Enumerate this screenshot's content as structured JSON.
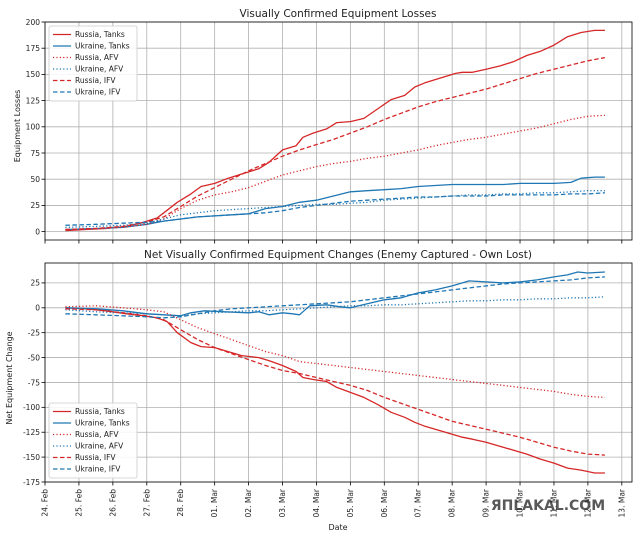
{
  "watermark": "ЯПLAKAL.COM",
  "chart_data": [
    {
      "type": "line",
      "title": "Visually Confirmed Equipment Losses",
      "xlabel": "",
      "ylabel": "Equipment Losses",
      "ylim": [
        -8,
        200
      ],
      "yticks": [
        0,
        25,
        50,
        75,
        100,
        125,
        150,
        175,
        200
      ],
      "xlim": [
        0,
        17.3
      ],
      "xticks": [
        0,
        1,
        2,
        3,
        4,
        5,
        6,
        7,
        8,
        9,
        10,
        11,
        12,
        13,
        14,
        15,
        16,
        17
      ],
      "xticklabels": [],
      "grid": true,
      "legend": "top-left",
      "series": [
        {
          "name": "Russia, Tanks",
          "color": "#d62728",
          "dash": "solid",
          "x": [
            0.6,
            1.2,
            1.8,
            2.4,
            2.9,
            3.3,
            3.5,
            3.9,
            4.3,
            4.6,
            5.0,
            5.4,
            5.8,
            6.3,
            6.6,
            7.0,
            7.4,
            7.6,
            7.9,
            8.3,
            8.6,
            9.0,
            9.4,
            9.8,
            10.2,
            10.6,
            10.9,
            11.2,
            11.5,
            11.8,
            12.1,
            12.3,
            12.6,
            13.0,
            13.4,
            13.8,
            14.2,
            14.6,
            15.0,
            15.4,
            15.8,
            16.2,
            16.5
          ],
          "y": [
            1,
            2,
            3,
            5,
            9,
            13,
            18,
            28,
            36,
            43,
            46,
            51,
            55,
            60,
            66,
            78,
            82,
            90,
            94,
            98,
            104,
            105,
            108,
            117,
            126,
            130,
            138,
            142,
            145,
            148,
            151,
            152,
            152,
            155,
            158,
            162,
            168,
            172,
            178,
            186,
            190,
            192,
            192
          ]
        },
        {
          "name": "Ukraine, Tanks",
          "color": "#1f77b4",
          "dash": "solid",
          "x": [
            0.6,
            1.5,
            2.3,
            3.0,
            3.5,
            4.0,
            4.5,
            5.0,
            5.5,
            6.0,
            6.5,
            7.0,
            7.5,
            8.0,
            8.5,
            9.0,
            9.5,
            10.0,
            10.5,
            11.0,
            11.5,
            12.0,
            12.5,
            13.0,
            13.5,
            14.0,
            14.5,
            15.0,
            15.5,
            15.8,
            16.2,
            16.5
          ],
          "y": [
            2,
            3,
            4,
            7,
            10,
            12,
            14,
            15,
            16,
            17,
            22,
            24,
            28,
            30,
            34,
            38,
            39,
            40,
            41,
            43,
            44,
            45,
            45,
            45,
            45,
            46,
            46,
            46,
            47,
            51,
            52,
            52
          ]
        },
        {
          "name": "Russia, AFV",
          "color": "#d62728",
          "dash": "dot",
          "x": [
            0.6,
            1.5,
            2.3,
            3.0,
            3.5,
            4.0,
            4.5,
            5.0,
            5.5,
            6.0,
            6.5,
            7.0,
            7.5,
            8.0,
            8.5,
            9.0,
            9.5,
            10.0,
            10.5,
            11.0,
            11.5,
            12.0,
            12.5,
            13.0,
            13.5,
            14.0,
            14.5,
            15.0,
            15.5,
            16.0,
            16.5
          ],
          "y": [
            2,
            3,
            4,
            7,
            12,
            22,
            30,
            35,
            38,
            42,
            48,
            54,
            58,
            62,
            65,
            67,
            70,
            72,
            75,
            78,
            82,
            85,
            88,
            90,
            93,
            96,
            99,
            103,
            107,
            110,
            111
          ]
        },
        {
          "name": "Ukraine, AFV",
          "color": "#1f77b4",
          "dash": "dot",
          "x": [
            0.6,
            1.5,
            2.3,
            3.0,
            3.5,
            4.0,
            4.5,
            5.0,
            5.5,
            6.0,
            6.5,
            7.0,
            7.5,
            8.0,
            8.5,
            9.0,
            9.5,
            10.0,
            10.5,
            11.0,
            11.5,
            12.0,
            12.5,
            13.0,
            13.5,
            14.0,
            14.5,
            15.0,
            15.5,
            16.0,
            16.5
          ],
          "y": [
            4,
            5,
            6,
            8,
            12,
            16,
            18,
            20,
            21,
            22,
            23,
            24,
            25,
            26,
            26,
            27,
            28,
            30,
            31,
            32,
            33,
            34,
            35,
            35,
            36,
            36,
            37,
            37,
            38,
            39,
            39
          ]
        },
        {
          "name": "Russia, IFV",
          "color": "#d62728",
          "dash": "dash",
          "x": [
            0.6,
            1.5,
            2.3,
            3.0,
            3.5,
            4.0,
            4.5,
            5.0,
            5.5,
            6.0,
            6.5,
            7.0,
            7.5,
            8.0,
            8.5,
            9.0,
            9.5,
            10.0,
            10.5,
            11.0,
            11.5,
            12.0,
            12.5,
            13.0,
            13.5,
            14.0,
            14.5,
            15.0,
            15.5,
            16.0,
            16.5
          ],
          "y": [
            2,
            3,
            5,
            9,
            14,
            24,
            34,
            42,
            50,
            58,
            65,
            72,
            78,
            83,
            88,
            94,
            100,
            107,
            113,
            119,
            124,
            128,
            132,
            136,
            141,
            146,
            151,
            155,
            159,
            163,
            166
          ]
        },
        {
          "name": "Ukraine, IFV",
          "color": "#1f77b4",
          "dash": "dash",
          "x": [
            0.6,
            1.5,
            2.3,
            3.0,
            3.5,
            4.0,
            4.5,
            5.0,
            5.5,
            6.0,
            6.5,
            7.0,
            7.5,
            8.0,
            8.5,
            9.0,
            9.5,
            10.0,
            10.5,
            11.0,
            11.5,
            12.0,
            12.5,
            13.0,
            13.5,
            14.0,
            14.5,
            15.0,
            15.5,
            16.0,
            16.5
          ],
          "y": [
            6,
            7,
            8,
            9,
            10,
            12,
            14,
            15,
            16,
            17,
            18,
            20,
            23,
            25,
            27,
            29,
            30,
            31,
            32,
            33,
            33,
            34,
            34,
            34,
            35,
            35,
            35,
            35,
            36,
            36,
            37
          ]
        }
      ]
    },
    {
      "type": "line",
      "title": "Net Visually Confirmed Equipment Changes (Enemy Captured - Own Lost)",
      "xlabel": "Date",
      "ylabel": "Net Equipment Change",
      "ylim": [
        -175,
        45
      ],
      "yticks": [
        -175,
        -150,
        -125,
        -100,
        -75,
        -50,
        -25,
        0,
        25
      ],
      "xlim": [
        0,
        17.3
      ],
      "xticks": [
        0,
        1,
        2,
        3,
        4,
        5,
        6,
        7,
        8,
        9,
        10,
        11,
        12,
        13,
        14,
        15,
        16,
        17
      ],
      "xticklabels": [
        "24. Feb",
        "25. Feb",
        "26. Feb",
        "27. Feb",
        "28. Feb",
        "01. Mar",
        "02. Mar",
        "03. Mar",
        "04. Mar",
        "05. Mar",
        "06. Mar",
        "07. Mar",
        "08. Mar",
        "09. Mar",
        "10. Mar",
        "11. Mar",
        "12. Mar",
        "13. Mar"
      ],
      "grid": true,
      "legend": "bottom-left",
      "series": [
        {
          "name": "Russia, Tanks",
          "color": "#d62728",
          "dash": "solid",
          "x": [
            0.6,
            1.2,
            1.8,
            2.4,
            2.9,
            3.3,
            3.6,
            3.9,
            4.3,
            4.6,
            5.0,
            5.4,
            5.8,
            6.3,
            6.6,
            7.0,
            7.4,
            7.6,
            7.9,
            8.3,
            8.6,
            9.0,
            9.4,
            9.8,
            10.2,
            10.6,
            10.9,
            11.2,
            11.5,
            11.8,
            12.1,
            12.3,
            12.6,
            13.0,
            13.4,
            13.8,
            14.2,
            14.6,
            15.0,
            15.4,
            15.8,
            16.2,
            16.5
          ],
          "y": [
            0,
            -1,
            -3,
            -6,
            -8,
            -10,
            -14,
            -25,
            -35,
            -39,
            -40,
            -44,
            -48,
            -50,
            -53,
            -58,
            -64,
            -70,
            -72,
            -74,
            -80,
            -85,
            -90,
            -97,
            -105,
            -110,
            -115,
            -119,
            -122,
            -125,
            -128,
            -130,
            -132,
            -135,
            -139,
            -143,
            -147,
            -152,
            -156,
            -161,
            -163,
            -166,
            -166
          ]
        },
        {
          "name": "Ukraine, Tanks",
          "color": "#1f77b4",
          "dash": "solid",
          "x": [
            0.6,
            1.5,
            2.3,
            3.0,
            3.5,
            4.0,
            4.3,
            4.7,
            5.3,
            6.0,
            6.3,
            6.6,
            7.0,
            7.3,
            7.5,
            7.8,
            8.3,
            8.7,
            9.0,
            9.5,
            10.0,
            10.5,
            11.0,
            11.5,
            12.0,
            12.5,
            13.0,
            13.5,
            14.0,
            14.5,
            15.0,
            15.4,
            15.7,
            16.0,
            16.5
          ],
          "y": [
            0,
            -1,
            -3,
            -6,
            -7,
            -8,
            -5,
            -3,
            -4,
            -5,
            -4,
            -7,
            -5,
            -6,
            -7,
            2,
            3,
            1,
            0,
            4,
            8,
            10,
            15,
            18,
            22,
            27,
            26,
            25,
            26,
            28,
            31,
            33,
            36,
            35,
            36
          ]
        },
        {
          "name": "Russia, AFV",
          "color": "#d62728",
          "dash": "dot",
          "x": [
            0.6,
            1.5,
            2.3,
            3.0,
            3.5,
            4.0,
            4.5,
            5.0,
            5.5,
            6.0,
            6.5,
            7.0,
            7.5,
            8.0,
            8.5,
            9.0,
            9.5,
            10.0,
            10.5,
            11.0,
            11.5,
            12.0,
            12.5,
            13.0,
            13.5,
            14.0,
            14.5,
            15.0,
            15.5,
            16.0,
            16.5
          ],
          "y": [
            1,
            2,
            0,
            -2,
            -4,
            -12,
            -20,
            -26,
            -32,
            -38,
            -44,
            -48,
            -54,
            -56,
            -58,
            -60,
            -62,
            -64,
            -66,
            -68,
            -70,
            -72,
            -74,
            -76,
            -78,
            -80,
            -82,
            -84,
            -87,
            -89,
            -90
          ]
        },
        {
          "name": "Ukraine, AFV",
          "color": "#1f77b4",
          "dash": "dot",
          "x": [
            0.6,
            1.5,
            2.3,
            3.0,
            3.5,
            4.0,
            4.5,
            5.0,
            5.5,
            6.0,
            6.5,
            7.0,
            7.5,
            8.0,
            8.5,
            9.0,
            9.5,
            10.0,
            10.5,
            11.0,
            11.5,
            12.0,
            12.5,
            13.0,
            13.5,
            14.0,
            14.5,
            15.0,
            15.5,
            16.0,
            16.5
          ],
          "y": [
            -2,
            -4,
            -5,
            -6,
            -7,
            -8,
            -6,
            -5,
            -4,
            -3,
            -3,
            -2,
            -1,
            0,
            1,
            2,
            2,
            3,
            3,
            4,
            5,
            6,
            7,
            7,
            8,
            8,
            9,
            9,
            10,
            10,
            11
          ]
        },
        {
          "name": "Russia, IFV",
          "color": "#d62728",
          "dash": "dash",
          "x": [
            0.6,
            1.5,
            2.3,
            3.0,
            3.5,
            4.0,
            4.5,
            5.0,
            5.5,
            6.0,
            6.5,
            7.0,
            7.5,
            8.0,
            8.5,
            9.0,
            9.5,
            10.0,
            10.5,
            11.0,
            11.5,
            12.0,
            12.5,
            13.0,
            13.5,
            14.0,
            14.5,
            15.0,
            15.5,
            16.0,
            16.5
          ],
          "y": [
            -1,
            -2,
            -5,
            -8,
            -12,
            -22,
            -32,
            -40,
            -46,
            -52,
            -58,
            -63,
            -66,
            -70,
            -74,
            -78,
            -83,
            -90,
            -96,
            -102,
            -108,
            -114,
            -118,
            -122,
            -126,
            -130,
            -135,
            -140,
            -144,
            -147,
            -148
          ]
        },
        {
          "name": "Ukraine, IFV",
          "color": "#1f77b4",
          "dash": "dash",
          "x": [
            0.6,
            1.5,
            2.3,
            3.0,
            3.5,
            4.0,
            4.5,
            5.0,
            5.5,
            6.0,
            6.5,
            7.0,
            7.5,
            8.0,
            8.5,
            9.0,
            9.5,
            10.0,
            10.5,
            11.0,
            11.5,
            12.0,
            12.5,
            13.0,
            13.5,
            14.0,
            14.5,
            15.0,
            15.5,
            16.0,
            16.5
          ],
          "y": [
            -6,
            -7,
            -8,
            -9,
            -10,
            -9,
            -6,
            -3,
            -1,
            0,
            1,
            2,
            3,
            4,
            5,
            6,
            8,
            10,
            12,
            14,
            16,
            18,
            20,
            22,
            24,
            25,
            26,
            27,
            28,
            30,
            31
          ]
        }
      ]
    }
  ]
}
